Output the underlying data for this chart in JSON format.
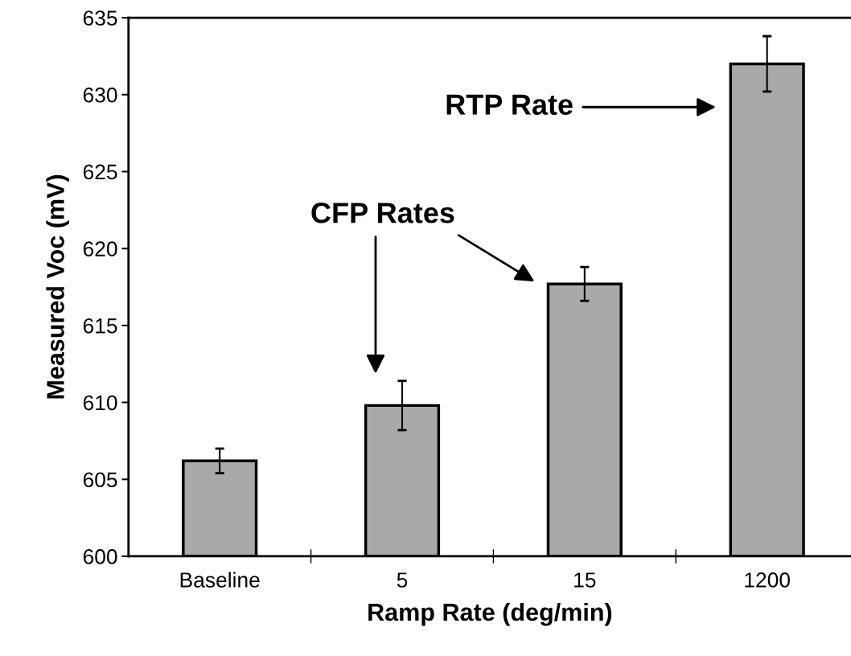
{
  "chart_data": {
    "type": "bar",
    "xlabel": "Ramp Rate (deg/min)",
    "ylabel": "Measured Voc (mV)",
    "categories": [
      "Baseline",
      "5",
      "15",
      "1200"
    ],
    "values": [
      606.2,
      609.8,
      617.7,
      632.0
    ],
    "errors": [
      0.8,
      1.6,
      1.1,
      1.8
    ],
    "color": "#a9a9a9",
    "ylim": [
      600,
      635
    ],
    "yticks": [
      600,
      605,
      610,
      615,
      620,
      625,
      630,
      635
    ],
    "grid": false,
    "legend": false,
    "annotations": [
      "CFP Rates",
      "RTP Rate"
    ]
  }
}
